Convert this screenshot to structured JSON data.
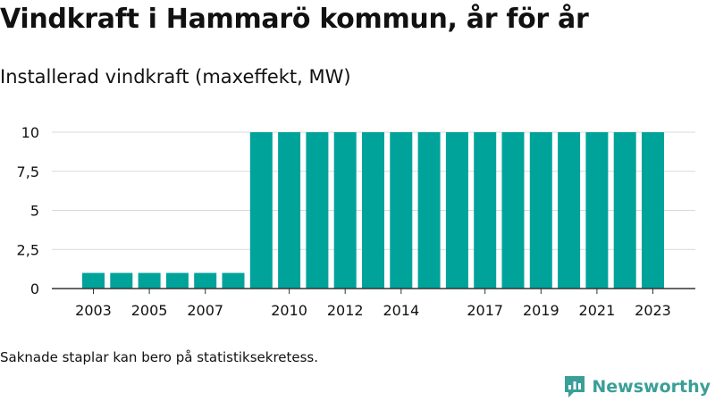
{
  "header": {
    "title": "Vindkraft i Hammarö kommun, år för år",
    "subtitle": "Installerad vindkraft (maxeffekt, MW)"
  },
  "footnote": "Saknade staplar kan bero på statistiksekretess.",
  "brand": {
    "name": "Newsworthy",
    "icon": "newsworthy-chart-icon",
    "color": "#3a9f97"
  },
  "colors": {
    "bar": "#00a39a",
    "grid": "#d9d9d9",
    "axis": "#333333",
    "text": "#111111"
  },
  "chart_data": {
    "type": "bar",
    "categories": [
      "2003",
      "2004",
      "2005",
      "2006",
      "2007",
      "2008",
      "2009",
      "2010",
      "2011",
      "2012",
      "2013",
      "2014",
      "2015",
      "2016",
      "2017",
      "2018",
      "2019",
      "2020",
      "2021",
      "2022",
      "2023"
    ],
    "values": [
      1,
      1,
      1,
      1,
      1,
      1,
      10,
      10,
      10,
      10,
      10,
      10,
      10,
      10,
      10,
      10,
      10,
      10,
      10,
      10,
      10
    ],
    "x_tick_labels": [
      "2003",
      "2005",
      "2007",
      "2010",
      "2012",
      "2014",
      "2017",
      "2019",
      "2021",
      "2023"
    ],
    "y_ticks": [
      0,
      2.5,
      5,
      7.5,
      10
    ],
    "y_tick_labels": [
      "0",
      "2,5",
      "5",
      "7,5",
      "10"
    ],
    "ylim": [
      0,
      10
    ],
    "grid": true,
    "xlabel": "",
    "ylabel": ""
  }
}
